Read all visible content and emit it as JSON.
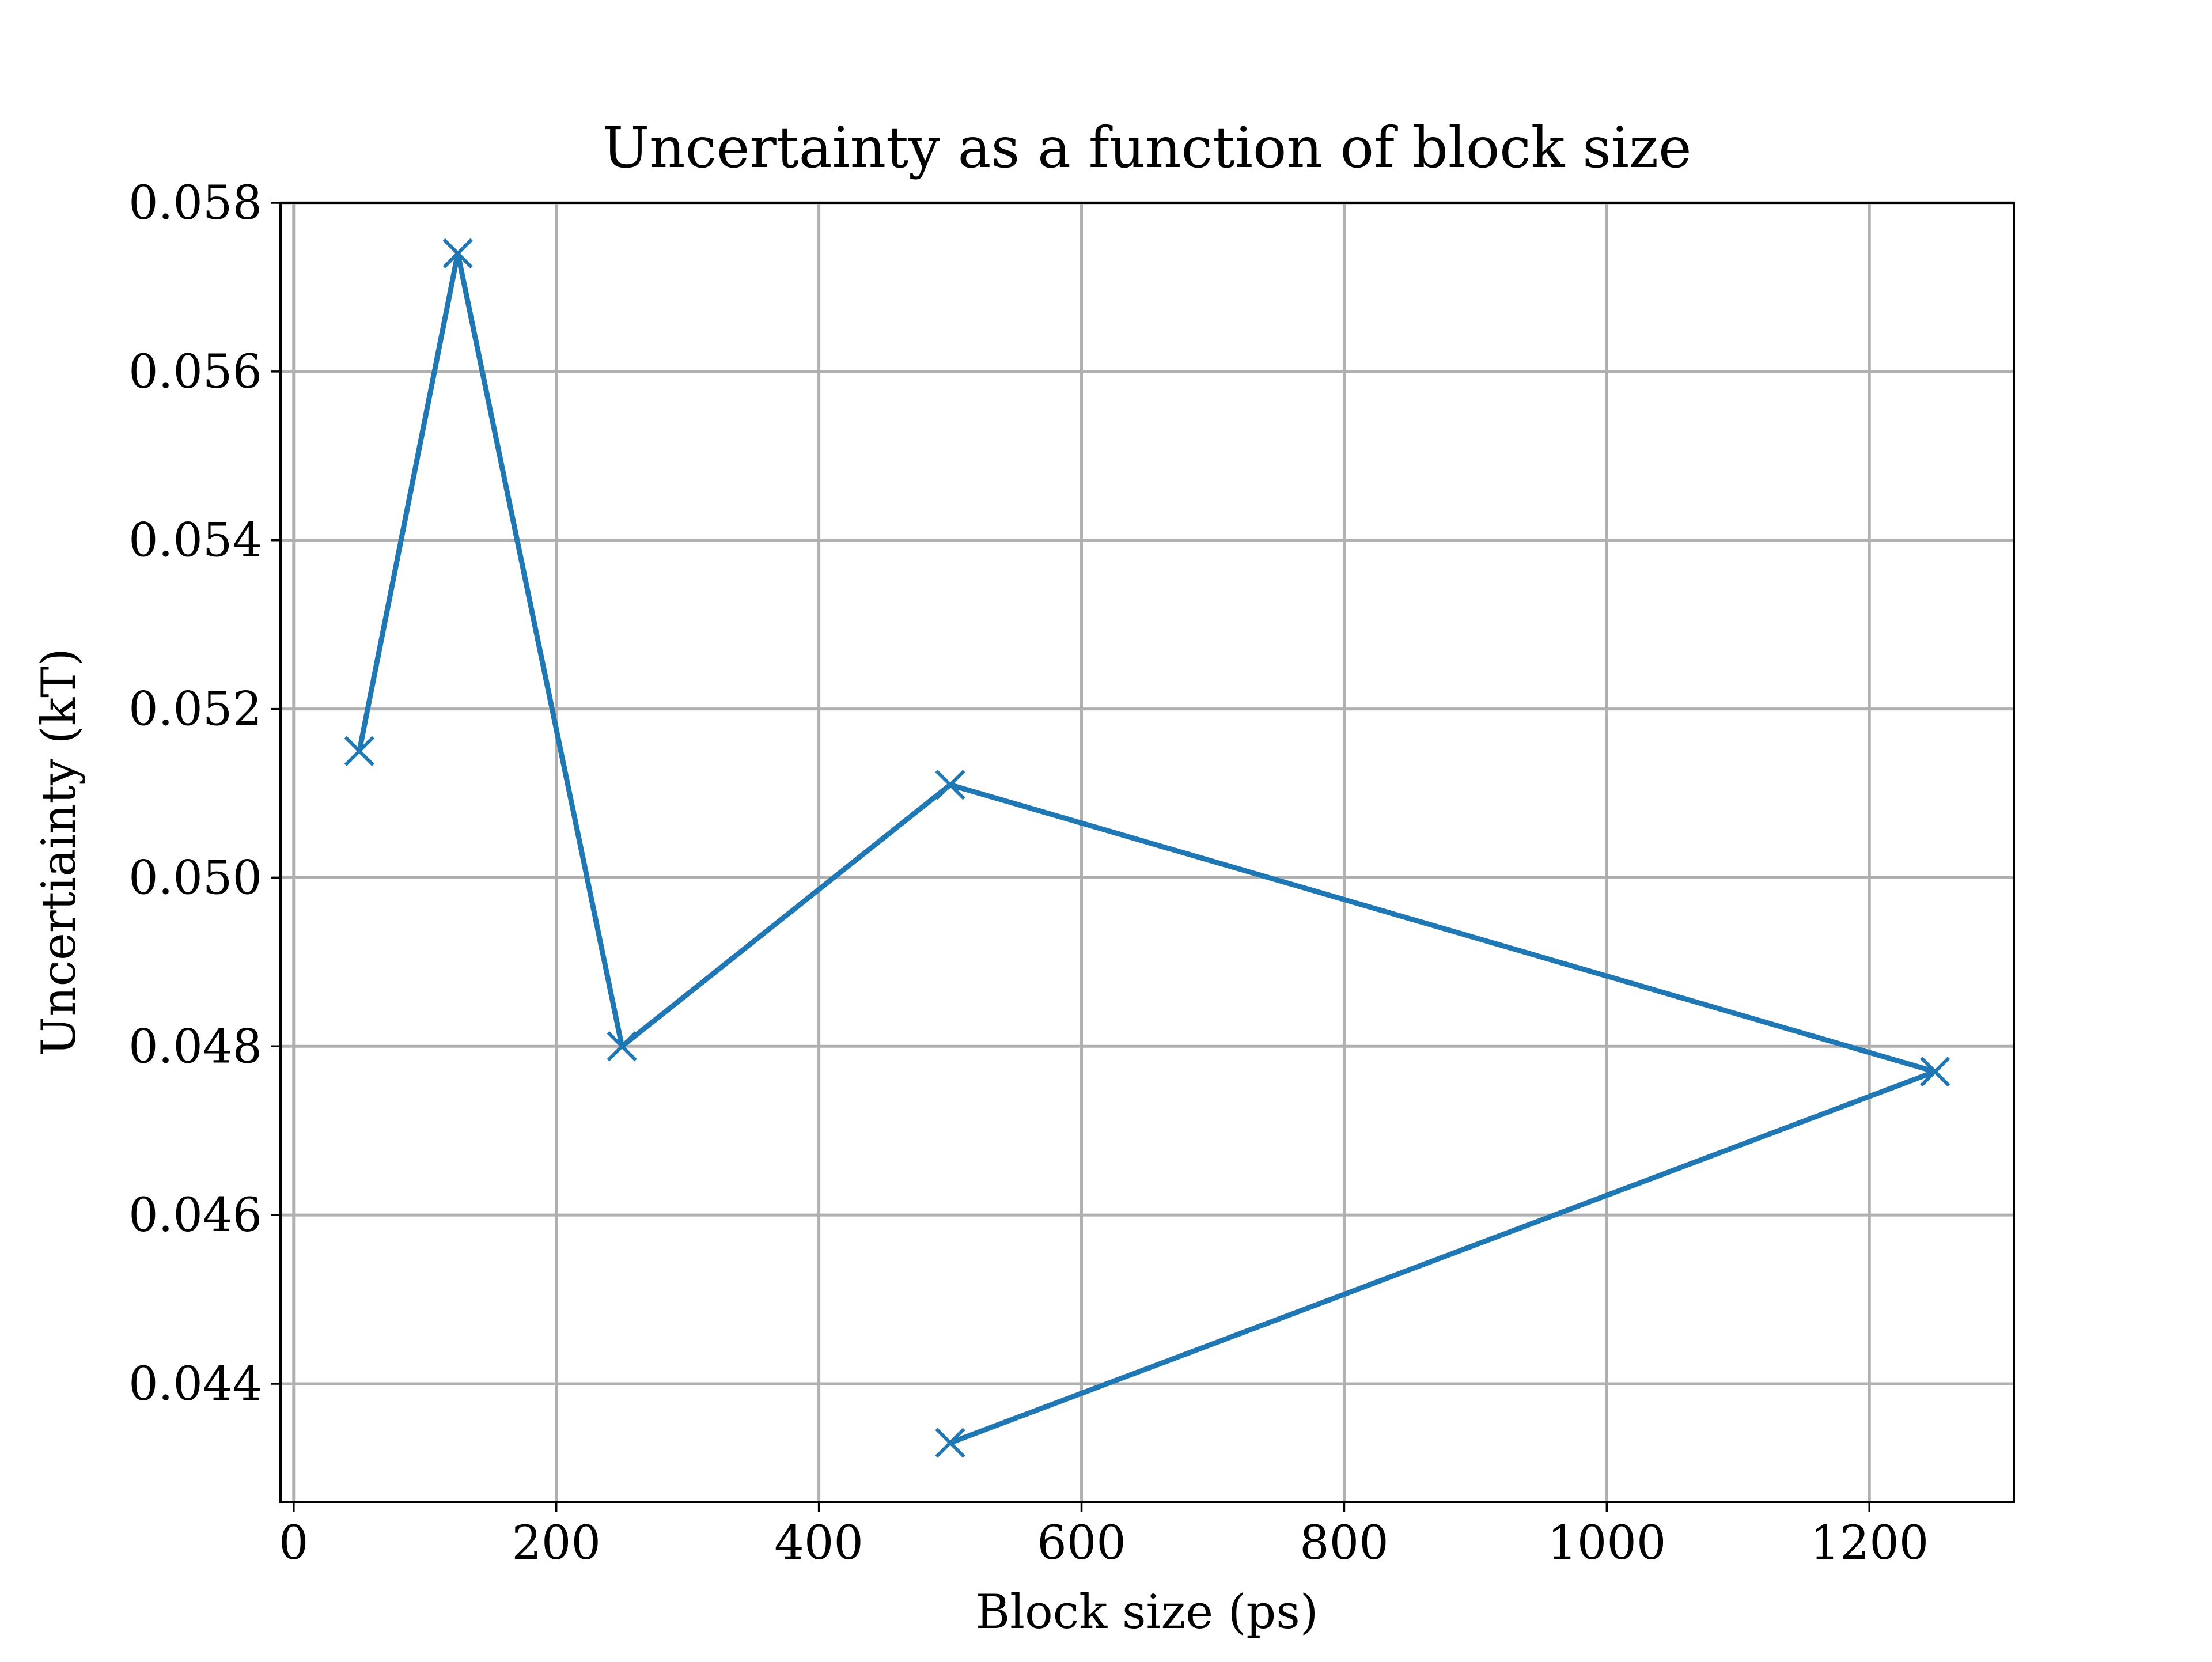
{
  "chart_data": {
    "type": "line",
    "title": "Uncertainty as a function of block size",
    "xlabel": "Block size (ps)",
    "ylabel": "Uncertiainty (kT)",
    "xlim": [
      -10,
      1310
    ],
    "ylim": [
      0.0426,
      0.058
    ],
    "xticks": [
      0,
      200,
      400,
      600,
      800,
      1000,
      1200
    ],
    "xtick_labels": [
      "0",
      "200",
      "400",
      "600",
      "800",
      "1000",
      "1200"
    ],
    "yticks": [
      0.044,
      0.046,
      0.048,
      0.05,
      0.052,
      0.054,
      0.056,
      0.058
    ],
    "ytick_labels": [
      "0.044",
      "0.046",
      "0.048",
      "0.050",
      "0.052",
      "0.054",
      "0.056",
      "0.058"
    ],
    "grid": true,
    "marker": "x",
    "series": [
      {
        "color": "#1f77b4",
        "x": [
          50,
          125,
          250,
          500,
          1250,
          500
        ],
        "y": [
          0.0515,
          0.0574,
          0.048,
          0.0511,
          0.0477,
          0.0433
        ]
      }
    ]
  }
}
